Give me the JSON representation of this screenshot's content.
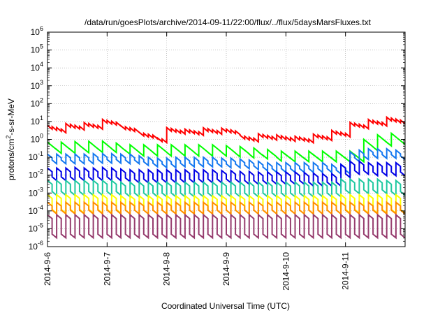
{
  "chart_data": {
    "type": "line",
    "title": "/data/run/goesPlots/archive/2014-09-11/22:00/flux/../flux/5daysMarsFluxes.txt",
    "xlabel": "Coordinated Universal Time (UTC)",
    "ylabel": {
      "pre": "protons/cm",
      "sup": "2",
      "post": "-s-sr-MeV"
    },
    "y_scale": "log",
    "ylim": [
      1e-06,
      1000000.0
    ],
    "y_ticks": [
      {
        "base": "10",
        "exp": "-6"
      },
      {
        "base": "10",
        "exp": "-5"
      },
      {
        "base": "10",
        "exp": "-4"
      },
      {
        "base": "10",
        "exp": "-3"
      },
      {
        "base": "10",
        "exp": "-2"
      },
      {
        "base": "10",
        "exp": "-1"
      },
      {
        "base": "10",
        "exp": "0"
      },
      {
        "base": "10",
        "exp": "1"
      },
      {
        "base": "10",
        "exp": "2"
      },
      {
        "base": "10",
        "exp": "3"
      },
      {
        "base": "10",
        "exp": "4"
      },
      {
        "base": "10",
        "exp": "5"
      },
      {
        "base": "10",
        "exp": "6"
      }
    ],
    "x_range": [
      "2014-09-06",
      "2014-09-12"
    ],
    "x_ticks": [
      "2014-9-6",
      "2014-9-7",
      "2014-9-8",
      "2014-9-9",
      "2014-9-10",
      "2014-9-11"
    ],
    "grid": true,
    "legend": "none",
    "series": [
      {
        "color": "#ff0000",
        "values": [
          6.0,
          5.2,
          4.6,
          3.8,
          7.8,
          6.9,
          6.1,
          5.4,
          8.7,
          7.7,
          6.8,
          6.0,
          13.1,
          11.6,
          10.3,
          9.1,
          5.8,
          5.1,
          4.5,
          4.0,
          2.5,
          2.2,
          1.95,
          1.73,
          1.2,
          1.06,
          4.6,
          4.1,
          3.6,
          3.2,
          3.8,
          3.4,
          3.0,
          2.7,
          4.5,
          4.0,
          3.5,
          3.1,
          4.3,
          3.8,
          3.4,
          3.0,
          1.7,
          1.5,
          1.33,
          1.18,
          2.1,
          1.86,
          1.65,
          1.46,
          1.8,
          1.6,
          1.4,
          1.25,
          1.5,
          1.33,
          1.18,
          1.04,
          2.0,
          1.77,
          1.57,
          1.39,
          3.2,
          2.8,
          2.5,
          2.2,
          9.0,
          8.0,
          7.1,
          6.3,
          13.0,
          11.5,
          10.2,
          9.0,
          17.5,
          15.5,
          13.7,
          12.1
        ]
      },
      {
        "color": "#00ff00",
        "values": [
          0.7,
          0.43,
          0.27,
          0.7,
          0.43,
          0.27,
          0.75,
          0.46,
          0.29,
          0.78,
          0.48,
          0.3,
          0.8,
          0.49,
          0.3,
          0.62,
          0.38,
          0.24,
          0.5,
          0.31,
          0.19,
          0.5,
          0.31,
          0.19,
          0.5,
          0.31,
          0.19,
          0.5,
          0.31,
          0.19,
          0.5,
          0.31,
          0.19,
          0.5,
          0.31,
          0.19,
          0.5,
          0.31,
          0.19,
          0.45,
          0.28,
          0.17,
          0.4,
          0.25,
          0.15,
          0.33,
          0.2,
          0.13,
          0.27,
          0.17,
          0.1,
          0.22,
          0.14,
          0.09,
          0.22,
          0.14,
          0.09,
          0.22,
          0.14,
          0.09,
          0.22,
          0.14,
          0.09,
          0.22,
          0.14,
          0.09,
          0.22,
          0.14,
          0.09,
          1.0,
          0.62,
          0.38,
          1.8,
          1.11,
          0.69,
          2.2,
          1.36,
          0.84
        ]
      },
      {
        "color": "#1478f0",
        "values": [
          0.15,
          0.07,
          0.15,
          0.07,
          0.15,
          0.07,
          0.15,
          0.07,
          0.15,
          0.07,
          0.16,
          0.075,
          0.16,
          0.075,
          0.16,
          0.075,
          0.15,
          0.07,
          0.15,
          0.07,
          0.12,
          0.056,
          0.1,
          0.047,
          0.09,
          0.042,
          0.09,
          0.042,
          0.1,
          0.047,
          0.1,
          0.047,
          0.1,
          0.047,
          0.1,
          0.047,
          0.1,
          0.047,
          0.09,
          0.042,
          0.09,
          0.042,
          0.08,
          0.037,
          0.07,
          0.033,
          0.06,
          0.028,
          0.05,
          0.023,
          0.05,
          0.023,
          0.05,
          0.023,
          0.05,
          0.023,
          0.05,
          0.023,
          0.05,
          0.023,
          0.05,
          0.023,
          0.04,
          0.019,
          0.04,
          0.019,
          0.2,
          0.093,
          0.25,
          0.12,
          0.3,
          0.14,
          0.3,
          0.14,
          0.3,
          0.14,
          0.25,
          0.12
        ]
      },
      {
        "color": "#0000e6",
        "values": [
          0.025,
          0.008,
          0.025,
          0.008,
          0.025,
          0.008,
          0.027,
          0.008,
          0.025,
          0.008,
          0.025,
          0.008,
          0.027,
          0.008,
          0.025,
          0.008,
          0.022,
          0.007,
          0.02,
          0.006,
          0.02,
          0.006,
          0.02,
          0.006,
          0.02,
          0.006,
          0.02,
          0.006,
          0.02,
          0.006,
          0.02,
          0.006,
          0.02,
          0.006,
          0.02,
          0.006,
          0.02,
          0.006,
          0.018,
          0.006,
          0.018,
          0.006,
          0.016,
          0.005,
          0.016,
          0.005,
          0.015,
          0.005,
          0.015,
          0.005,
          0.015,
          0.005,
          0.015,
          0.005,
          0.015,
          0.005,
          0.014,
          0.004,
          0.013,
          0.004,
          0.012,
          0.004,
          0.012,
          0.004,
          0.04,
          0.012,
          0.06,
          0.018,
          0.06,
          0.018,
          0.05,
          0.015,
          0.05,
          0.015,
          0.05,
          0.015,
          0.05,
          0.015
        ]
      },
      {
        "color": "#1ec8a0",
        "values": [
          0.005,
          0.0012,
          0.005,
          0.0012,
          0.005,
          0.0012,
          0.005,
          0.0012,
          0.005,
          0.0012,
          0.005,
          0.0012,
          0.005,
          0.0012,
          0.005,
          0.0012,
          0.004,
          0.001,
          0.004,
          0.001,
          0.004,
          0.001,
          0.004,
          0.001,
          0.004,
          0.001,
          0.004,
          0.001,
          0.004,
          0.001,
          0.004,
          0.001,
          0.004,
          0.001,
          0.004,
          0.001,
          0.004,
          0.001,
          0.004,
          0.001,
          0.004,
          0.001,
          0.004,
          0.001,
          0.004,
          0.001,
          0.004,
          0.001,
          0.004,
          0.001,
          0.004,
          0.001,
          0.004,
          0.001,
          0.004,
          0.001,
          0.004,
          0.001,
          0.004,
          0.001,
          0.004,
          0.001,
          0.004,
          0.001,
          0.006,
          0.0015,
          0.006,
          0.0015,
          0.006,
          0.0015,
          0.006,
          0.0015,
          0.006,
          0.0015,
          0.005,
          0.0012,
          0.005,
          0.0012
        ]
      },
      {
        "color": "#ffff00",
        "values": [
          0.0008,
          0.00012,
          0.0008,
          0.00012,
          0.0008,
          0.00012,
          0.0008,
          0.00012,
          0.0008,
          0.00012,
          0.0008,
          0.00012,
          0.0008,
          0.00012,
          0.0008,
          0.00012,
          0.0007,
          0.00011,
          0.0007,
          0.00011,
          0.0007,
          0.00011,
          0.0007,
          0.00011,
          0.0007,
          0.00011,
          0.0007,
          0.00011,
          0.0007,
          0.00011,
          0.0007,
          0.00011,
          0.0007,
          0.00011,
          0.0007,
          0.00011,
          0.0007,
          0.00011,
          0.0007,
          0.00011,
          0.0007,
          0.00011,
          0.0007,
          0.00011,
          0.0007,
          0.00011,
          0.0007,
          0.00011,
          0.0007,
          0.00011,
          0.0007,
          0.00011,
          0.0007,
          0.00011,
          0.0007,
          0.00011,
          0.0007,
          0.00011,
          0.0007,
          0.00011,
          0.0007,
          0.00011,
          0.0007,
          0.00011,
          0.0008,
          0.00012,
          0.0008,
          0.00012,
          0.0008,
          0.00012,
          0.0008,
          0.00012,
          0.0008,
          0.00012,
          0.0008,
          0.00012,
          0.0008,
          0.00012
        ]
      },
      {
        "color": "#ff8c00",
        "values": [
          0.0003,
          0.00011,
          0.0003,
          0.00011,
          0.0003,
          0.00011,
          0.0003,
          0.00011,
          0.0003,
          0.00011,
          0.0003,
          0.00011,
          0.0003,
          0.00011,
          0.0003,
          0.00011,
          0.0003,
          0.00011,
          0.0003,
          0.00011,
          0.0003,
          0.00011,
          0.0003,
          0.00011,
          0.0003,
          0.00011,
          0.0003,
          0.00011,
          0.0003,
          0.00011,
          0.0003,
          0.00011,
          0.0003,
          0.00011,
          0.0003,
          0.00011,
          0.0003,
          0.00011,
          0.0003,
          0.00011,
          0.0003,
          0.00011,
          0.0003,
          0.00011,
          0.0003,
          0.00011,
          0.0003,
          0.00011,
          0.0003,
          0.00011,
          0.0003,
          0.00011,
          0.0003,
          0.00011,
          0.0003,
          0.00011,
          0.0003,
          0.00011,
          0.0003,
          0.00011,
          0.0003,
          0.00011,
          0.0003,
          0.00011,
          0.0003,
          0.00011,
          0.0003,
          0.00011,
          0.0003,
          0.00011,
          0.0003,
          0.00011,
          0.0003,
          0.00011,
          0.0003,
          0.00011,
          0.0003,
          0.00011
        ]
      },
      {
        "color": "#963c6e",
        "values": [
          6e-05,
          5e-06,
          6e-05,
          5e-06,
          6e-05,
          5e-06,
          6e-05,
          5e-06,
          6e-05,
          5e-06,
          6e-05,
          5e-06,
          6e-05,
          5e-06,
          6e-05,
          5e-06,
          6e-05,
          5e-06,
          6e-05,
          5e-06,
          6e-05,
          5e-06,
          6e-05,
          5e-06,
          6e-05,
          5e-06,
          6e-05,
          5e-06,
          6e-05,
          5e-06,
          6e-05,
          5e-06,
          6e-05,
          5e-06,
          6e-05,
          5e-06,
          6e-05,
          5e-06,
          6e-05,
          5e-06,
          6e-05,
          5e-06,
          6e-05,
          5e-06,
          6e-05,
          5e-06,
          6e-05,
          5e-06,
          6e-05,
          5e-06,
          6e-05,
          5e-06,
          6e-05,
          5e-06,
          6e-05,
          5e-06,
          6e-05,
          5e-06,
          6e-05,
          5e-06,
          6e-05,
          5e-06,
          6e-05,
          5e-06,
          6e-05,
          5e-06,
          6e-05,
          5e-06,
          6e-05,
          5e-06,
          6e-05,
          5e-06,
          6e-05,
          5e-06,
          6e-05,
          5e-06,
          6e-05,
          5e-06
        ]
      }
    ]
  }
}
